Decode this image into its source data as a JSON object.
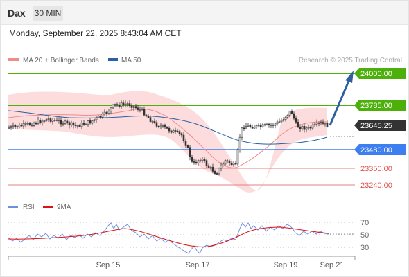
{
  "header": {
    "symbol": "Dax",
    "timeframe": "30 MIN",
    "timestamp": "Monday, September 22, 2025 8:43:04 AM CET"
  },
  "legend": {
    "ma20_bb": "MA 20 + Bollinger Bands",
    "ma50": "MA 50",
    "copyright": "Research © 2025 Trading Central"
  },
  "colors": {
    "green": "#4caf0a",
    "blue": "#3d7ef0",
    "red": "#e05050",
    "dark": "#333333",
    "arrow": "#2f5f9f",
    "band": "#fcd2d2",
    "rsi": "#6f8fe0",
    "rsi_ma": "#dd1111"
  },
  "levels": [
    {
      "label": "24000.00",
      "value": 24000,
      "kind": "resistance"
    },
    {
      "label": "23785.00",
      "value": 23785,
      "kind": "resistance"
    },
    {
      "label": "23645.25",
      "value": 23645.25,
      "kind": "last"
    },
    {
      "label": "23480.00",
      "value": 23480,
      "kind": "pivot"
    },
    {
      "label": "23350.00",
      "value": 23350,
      "kind": "support"
    },
    {
      "label": "23240.00",
      "value": 23240,
      "kind": "support"
    }
  ],
  "rsi_panel": {
    "rsi_label": "RSI",
    "ma_label": "9MA",
    "ticks": [
      "70",
      "50",
      "30"
    ]
  },
  "x_axis": [
    "Sep 15",
    "Sep 17",
    "Sep 19",
    "Sep 21"
  ]
}
